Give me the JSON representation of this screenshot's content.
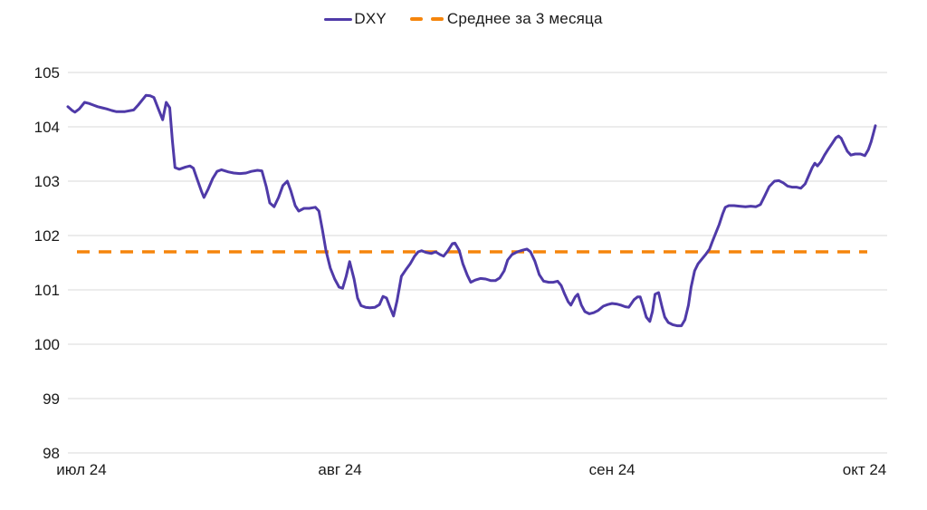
{
  "legend": {
    "items": [
      {
        "label": "DXY",
        "marker": "solid-line",
        "color": "#4F3AA8"
      },
      {
        "label": "Среднее за 3 месяца",
        "marker": "dashed-line",
        "color": "#F5850C"
      }
    ]
  },
  "chart_data": {
    "type": "line",
    "title": "",
    "xlabel": "",
    "ylabel": "",
    "legend_position": "top-center",
    "grid": "horizontal",
    "y_axis": {
      "range": [
        98,
        105
      ],
      "ticks": [
        105,
        104,
        103,
        102,
        101,
        100,
        99,
        98
      ]
    },
    "x_axis": {
      "unit": "days since Jul 1 2024",
      "range_days": [
        0,
        92
      ],
      "ticks": [
        {
          "day": 0,
          "label": "июл 24"
        },
        {
          "day": 31,
          "label": "авг 24"
        },
        {
          "day": 62,
          "label": "сен 24"
        },
        {
          "day": 92,
          "label": "окт 24"
        }
      ]
    },
    "colors": {
      "grid": "#dadada",
      "axis_text": "#1a1a1a",
      "line": "#4F3AA8",
      "mean": "#F5850C"
    },
    "mean_line": {
      "name": "Среднее за 3 месяца",
      "value": 101.7,
      "style": "dashed"
    },
    "series": [
      {
        "name": "DXY",
        "color": "#4F3AA8",
        "points": [
          [
            0.0,
            104.37
          ],
          [
            0.5,
            104.3
          ],
          [
            0.8,
            104.27
          ],
          [
            1.3,
            104.33
          ],
          [
            1.9,
            104.45
          ],
          [
            2.4,
            104.43
          ],
          [
            2.9,
            104.4
          ],
          [
            3.4,
            104.37
          ],
          [
            3.9,
            104.35
          ],
          [
            4.4,
            104.33
          ],
          [
            5.0,
            104.3
          ],
          [
            5.5,
            104.28
          ],
          [
            6.5,
            104.28
          ],
          [
            7.5,
            104.31
          ],
          [
            8.0,
            104.4
          ],
          [
            8.6,
            104.52
          ],
          [
            8.9,
            104.58
          ],
          [
            9.4,
            104.57
          ],
          [
            9.8,
            104.54
          ],
          [
            10.3,
            104.33
          ],
          [
            10.8,
            104.13
          ],
          [
            11.2,
            104.45
          ],
          [
            11.6,
            104.35
          ],
          [
            11.9,
            103.75
          ],
          [
            12.2,
            103.25
          ],
          [
            12.7,
            103.22
          ],
          [
            13.4,
            103.26
          ],
          [
            13.9,
            103.28
          ],
          [
            14.3,
            103.24
          ],
          [
            14.7,
            103.05
          ],
          [
            15.2,
            102.82
          ],
          [
            15.5,
            102.7
          ],
          [
            16.0,
            102.86
          ],
          [
            16.5,
            103.05
          ],
          [
            17.0,
            103.18
          ],
          [
            17.5,
            103.21
          ],
          [
            18.3,
            103.17
          ],
          [
            18.9,
            103.15
          ],
          [
            19.6,
            103.14
          ],
          [
            20.3,
            103.15
          ],
          [
            20.9,
            103.18
          ],
          [
            21.6,
            103.2
          ],
          [
            22.1,
            103.19
          ],
          [
            22.6,
            102.9
          ],
          [
            23.0,
            102.6
          ],
          [
            23.5,
            102.53
          ],
          [
            24.0,
            102.7
          ],
          [
            24.5,
            102.92
          ],
          [
            25.0,
            103.0
          ],
          [
            25.4,
            102.82
          ],
          [
            25.9,
            102.55
          ],
          [
            26.3,
            102.45
          ],
          [
            26.9,
            102.5
          ],
          [
            27.5,
            102.5
          ],
          [
            28.2,
            102.52
          ],
          [
            28.6,
            102.45
          ],
          [
            29.0,
            102.1
          ],
          [
            29.4,
            101.72
          ],
          [
            29.9,
            101.4
          ],
          [
            30.4,
            101.2
          ],
          [
            30.9,
            101.05
          ],
          [
            31.3,
            101.03
          ],
          [
            31.7,
            101.25
          ],
          [
            32.1,
            101.52
          ],
          [
            32.6,
            101.2
          ],
          [
            33.0,
            100.85
          ],
          [
            33.4,
            100.71
          ],
          [
            33.9,
            100.68
          ],
          [
            34.4,
            100.67
          ],
          [
            35.0,
            100.68
          ],
          [
            35.5,
            100.73
          ],
          [
            35.9,
            100.88
          ],
          [
            36.3,
            100.85
          ],
          [
            36.7,
            100.68
          ],
          [
            37.1,
            100.52
          ],
          [
            37.5,
            100.8
          ],
          [
            38.0,
            101.25
          ],
          [
            38.5,
            101.37
          ],
          [
            39.0,
            101.48
          ],
          [
            39.5,
            101.62
          ],
          [
            39.9,
            101.7
          ],
          [
            40.3,
            101.72
          ],
          [
            40.8,
            101.69
          ],
          [
            41.4,
            101.67
          ],
          [
            41.9,
            101.7
          ],
          [
            42.4,
            101.65
          ],
          [
            42.8,
            101.62
          ],
          [
            43.3,
            101.72
          ],
          [
            43.8,
            101.85
          ],
          [
            44.1,
            101.86
          ],
          [
            44.6,
            101.72
          ],
          [
            45.0,
            101.48
          ],
          [
            45.5,
            101.27
          ],
          [
            45.9,
            101.14
          ],
          [
            46.4,
            101.18
          ],
          [
            47.0,
            101.21
          ],
          [
            47.6,
            101.2
          ],
          [
            48.2,
            101.17
          ],
          [
            48.7,
            101.17
          ],
          [
            49.2,
            101.22
          ],
          [
            49.7,
            101.35
          ],
          [
            50.1,
            101.55
          ],
          [
            50.6,
            101.65
          ],
          [
            51.2,
            101.7
          ],
          [
            51.8,
            101.73
          ],
          [
            52.3,
            101.75
          ],
          [
            52.7,
            101.7
          ],
          [
            53.2,
            101.53
          ],
          [
            53.7,
            101.28
          ],
          [
            54.2,
            101.16
          ],
          [
            54.8,
            101.14
          ],
          [
            55.3,
            101.14
          ],
          [
            55.8,
            101.16
          ],
          [
            56.2,
            101.08
          ],
          [
            56.6,
            100.92
          ],
          [
            57.0,
            100.78
          ],
          [
            57.3,
            100.72
          ],
          [
            57.8,
            100.87
          ],
          [
            58.1,
            100.92
          ],
          [
            58.5,
            100.72
          ],
          [
            58.9,
            100.6
          ],
          [
            59.4,
            100.56
          ],
          [
            59.9,
            100.58
          ],
          [
            60.4,
            100.62
          ],
          [
            61.0,
            100.7
          ],
          [
            61.5,
            100.73
          ],
          [
            62.0,
            100.75
          ],
          [
            62.5,
            100.74
          ],
          [
            63.0,
            100.72
          ],
          [
            63.5,
            100.69
          ],
          [
            63.9,
            100.68
          ],
          [
            64.5,
            100.82
          ],
          [
            64.9,
            100.87
          ],
          [
            65.2,
            100.87
          ],
          [
            65.5,
            100.72
          ],
          [
            65.9,
            100.5
          ],
          [
            66.3,
            100.42
          ],
          [
            66.6,
            100.6
          ],
          [
            66.9,
            100.92
          ],
          [
            67.3,
            100.95
          ],
          [
            67.7,
            100.68
          ],
          [
            68.0,
            100.5
          ],
          [
            68.4,
            100.4
          ],
          [
            68.9,
            100.36
          ],
          [
            69.4,
            100.34
          ],
          [
            69.9,
            100.34
          ],
          [
            70.3,
            100.45
          ],
          [
            70.7,
            100.72
          ],
          [
            71.0,
            101.05
          ],
          [
            71.4,
            101.35
          ],
          [
            71.8,
            101.48
          ],
          [
            72.3,
            101.58
          ],
          [
            72.7,
            101.66
          ],
          [
            73.1,
            101.75
          ],
          [
            73.4,
            101.88
          ],
          [
            73.9,
            102.08
          ],
          [
            74.2,
            102.2
          ],
          [
            74.6,
            102.4
          ],
          [
            74.9,
            102.52
          ],
          [
            75.3,
            102.55
          ],
          [
            75.9,
            102.55
          ],
          [
            76.5,
            102.54
          ],
          [
            77.2,
            102.53
          ],
          [
            77.8,
            102.54
          ],
          [
            78.4,
            102.53
          ],
          [
            78.9,
            102.57
          ],
          [
            79.4,
            102.73
          ],
          [
            79.9,
            102.9
          ],
          [
            80.5,
            103.0
          ],
          [
            81.0,
            103.01
          ],
          [
            81.5,
            102.97
          ],
          [
            82.0,
            102.91
          ],
          [
            82.5,
            102.89
          ],
          [
            83.0,
            102.89
          ],
          [
            83.5,
            102.87
          ],
          [
            84.0,
            102.95
          ],
          [
            84.4,
            103.1
          ],
          [
            84.8,
            103.25
          ],
          [
            85.1,
            103.33
          ],
          [
            85.4,
            103.28
          ],
          [
            85.8,
            103.36
          ],
          [
            86.2,
            103.48
          ],
          [
            86.6,
            103.58
          ],
          [
            87.1,
            103.7
          ],
          [
            87.5,
            103.8
          ],
          [
            87.8,
            103.83
          ],
          [
            88.1,
            103.79
          ],
          [
            88.5,
            103.65
          ],
          [
            88.8,
            103.55
          ],
          [
            89.2,
            103.48
          ],
          [
            89.7,
            103.5
          ],
          [
            90.3,
            103.5
          ],
          [
            90.8,
            103.47
          ],
          [
            91.2,
            103.58
          ],
          [
            91.5,
            103.72
          ],
          [
            91.8,
            103.9
          ],
          [
            92.0,
            104.02
          ]
        ]
      }
    ]
  }
}
